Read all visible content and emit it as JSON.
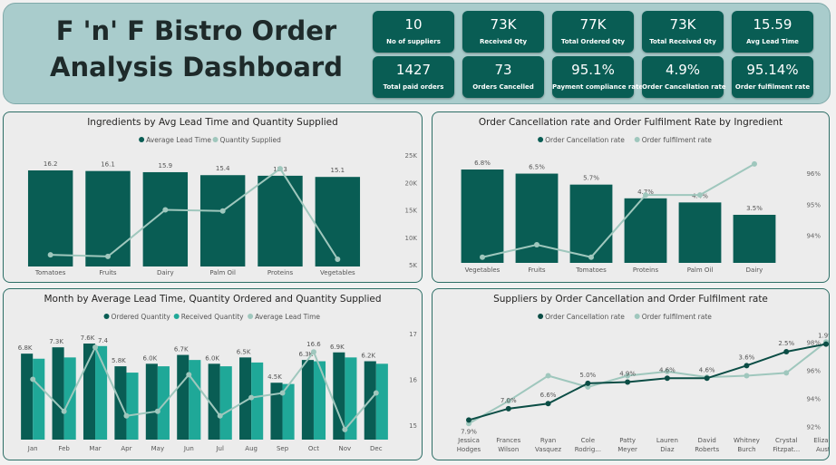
{
  "header": {
    "title_line1": "F 'n' F Bistro Order",
    "title_line2": "Analysis Dashboard"
  },
  "kpis": [
    {
      "value": "10",
      "label": "No of suppliers"
    },
    {
      "value": "73K",
      "label": "Received Qty"
    },
    {
      "value": "77K",
      "label": "Total Ordered Qty"
    },
    {
      "value": "73K",
      "label": "Total Received Qty"
    },
    {
      "value": "15.59",
      "label": "Avg Lead Time"
    },
    {
      "value": "1427",
      "label": "Total paid orders"
    },
    {
      "value": "73",
      "label": "Orders Cancelled"
    },
    {
      "value": "95.1%",
      "label": "Payment compliance rate"
    },
    {
      "value": "4.9%",
      "label": "Order Cancellation rate"
    },
    {
      "value": "95.14%",
      "label": "Order fulfilment rate"
    }
  ],
  "colors": {
    "dark_teal": "#095d54",
    "mid_teal": "#1fa898",
    "light_line": "#9fc7bd",
    "dark_line": "#0b4d45"
  },
  "chart_data": [
    {
      "type": "bar",
      "title": "Ingredients by Avg Lead Time and Quantity Supplied",
      "legend": [
        "Average Lead Time",
        "Quantity Supplied"
      ],
      "legend_placement": "top-center",
      "categories": [
        "Tomatoes",
        "Fruits",
        "Dairy",
        "Palm Oil",
        "Proteins",
        "Vegetables"
      ],
      "series": [
        {
          "name": "Average Lead Time",
          "kind": "bar",
          "values": [
            16.2,
            16.1,
            15.9,
            15.4,
            15.3,
            15.1
          ],
          "labels": [
            "16.2",
            "16.1",
            "15.9",
            "15.4",
            "15.3",
            "15.1"
          ]
        },
        {
          "name": "Quantity Supplied",
          "kind": "line",
          "axis": "right",
          "values": [
            6800,
            6500,
            15000,
            14800,
            22500,
            6000
          ]
        }
      ],
      "y_right_ticks": [
        "5K",
        "10K",
        "15K",
        "20K",
        "25K"
      ],
      "y_right_range": [
        5000,
        25000
      ]
    },
    {
      "type": "bar",
      "title": "Order Cancellation rate and Order Fulfilment Rate by Ingredient",
      "legend": [
        "Order Cancellation rate",
        "Order fulfilment rate"
      ],
      "legend_placement": "top-center",
      "categories": [
        "Vegetables",
        "Fruits",
        "Tomatoes",
        "Proteins",
        "Palm Oil",
        "Dairy"
      ],
      "series": [
        {
          "name": "Order Cancellation rate",
          "kind": "bar",
          "values": [
            6.8,
            6.5,
            5.7,
            4.7,
            4.4,
            3.5
          ],
          "labels": [
            "6.8%",
            "6.5%",
            "5.7%",
            "4.7%",
            "4.4%",
            "3.5%"
          ]
        },
        {
          "name": "Order fulfilment rate",
          "kind": "line",
          "axis": "right",
          "values": [
            93.3,
            93.7,
            93.3,
            95.3,
            95.3,
            96.3
          ]
        }
      ],
      "y_right_ticks": [
        "94%",
        "95%",
        "96%"
      ],
      "y_right_range": [
        93.0,
        96.5
      ]
    },
    {
      "type": "bar",
      "title": "Month by Average Lead Time, Quantity Ordered and Quantity Supplied",
      "legend": [
        "Ordered Quantity",
        "Received Quantity",
        "Average Lead Time"
      ],
      "legend_placement": "top-center",
      "categories": [
        "Jan",
        "Feb",
        "Mar",
        "Apr",
        "May",
        "Jun",
        "Jul",
        "Aug",
        "Sep",
        "Oct",
        "Nov",
        "Dec"
      ],
      "series": [
        {
          "name": "Ordered Quantity",
          "kind": "bar",
          "values": [
            6800,
            7300,
            7600,
            5800,
            6000,
            6700,
            6000,
            6500,
            4500,
            6300,
            6900,
            6200
          ],
          "labels": [
            "6.8K",
            "7.3K",
            "7.6K",
            "5.8K",
            "6.0K",
            "6.7K",
            "6.0K",
            "6.5K",
            "4.5K",
            "6.3K",
            "6.9K",
            "6.2K"
          ]
        },
        {
          "name": "Received Quantity",
          "kind": "bar",
          "values": [
            6400,
            6500,
            7400,
            5300,
            5800,
            6300,
            5800,
            6100,
            4400,
            6200,
            6500,
            6000
          ],
          "labels": [
            "",
            "",
            "7.4",
            "",
            "",
            "",
            "",
            "",
            "",
            "",
            "",
            ""
          ]
        },
        {
          "name": "Average Lead Time",
          "kind": "line",
          "axis": "right",
          "values": [
            16.0,
            15.3,
            16.7,
            15.2,
            15.3,
            16.1,
            15.2,
            15.6,
            15.7,
            16.6,
            14.9,
            15.7
          ],
          "labels": [
            "",
            "",
            "",
            "",
            "",
            "",
            "",
            "",
            "",
            "16.6",
            "",
            ""
          ]
        }
      ],
      "y_right_ticks": [
        "15",
        "16",
        "17"
      ],
      "y_right_range": [
        14.6,
        17.1
      ]
    },
    {
      "type": "line",
      "title": "Suppliers by Order Cancellation and Order Fulfilment rate",
      "legend": [
        "Order Cancellation rate",
        "Order fulfilment rate"
      ],
      "legend_placement": "top-center",
      "categories": [
        "Jessica Hodges",
        "Frances Wilson",
        "Ryan Vasquez",
        "Cole Rodrig...",
        "Patty Meyer",
        "Lauren Diaz",
        "David Roberts",
        "Whitney Burch",
        "Crystal Fitzpat...",
        "Elizab... Austin"
      ],
      "series": [
        {
          "name": "Order Cancellation rate",
          "values": [
            7.9,
            7.0,
            6.6,
            5.0,
            4.9,
            4.6,
            4.6,
            3.6,
            2.5,
            1.9
          ],
          "labels": [
            "7.9%",
            "7.0%",
            "6.6%",
            "5.0%",
            "4.9%",
            "4.6%",
            "4.6%",
            "3.6%",
            "2.5%",
            "1.9%"
          ]
        },
        {
          "name": "Order fulfilment rate",
          "axis": "right",
          "values": [
            92.2,
            93.8,
            95.6,
            94.8,
            95.6,
            95.9,
            95.5,
            95.6,
            95.8,
            98.0
          ]
        }
      ],
      "y_right_ticks": [
        "92%",
        "94%",
        "96%",
        "98%"
      ],
      "y_right_range": [
        91.7,
        98.6
      ]
    }
  ]
}
